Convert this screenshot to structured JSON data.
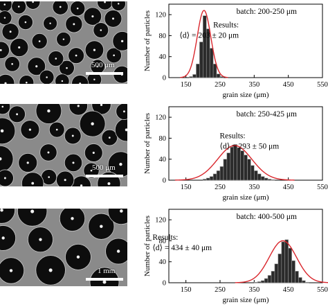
{
  "panels": [
    {
      "scale_bar": "500 μm",
      "batch": "batch: 200-250 μm",
      "results_title": "Results:",
      "results_value": "⟨d⟩ = 203 ± 20 μm"
    },
    {
      "scale_bar": "500 μm",
      "batch": "batch: 250-425 μm",
      "results_title": "Results:",
      "results_value": "⟨d⟩ = 293 ± 50 μm"
    },
    {
      "scale_bar": "1 mm",
      "batch": "batch: 400-500 μm",
      "results_title": "Results:",
      "results_value": "⟨d⟩ = 434 ± 40 μm"
    }
  ],
  "chart_data": [
    {
      "type": "bar",
      "xlabel": "grain size (μm)",
      "ylabel": "Number of particles",
      "xlim": [
        100,
        550
      ],
      "ylim": [
        0,
        140
      ],
      "xticks": [
        150,
        250,
        350,
        450,
        550
      ],
      "yticks": [
        0,
        40,
        80,
        120
      ],
      "bin_width": 10,
      "x": [
        165,
        175,
        185,
        195,
        205,
        215,
        225,
        235,
        245,
        255
      ],
      "values": [
        2,
        6,
        26,
        68,
        118,
        93,
        56,
        26,
        7,
        2
      ],
      "fit": {
        "mean": 203,
        "sd": 20,
        "peak": 128,
        "color": "#d9262c"
      }
    },
    {
      "type": "bar",
      "xlabel": "grain size (μm)",
      "ylabel": "Number of particles",
      "xlim": [
        100,
        550
      ],
      "ylim": [
        0,
        140
      ],
      "xticks": [
        150,
        250,
        350,
        450,
        550
      ],
      "yticks": [
        0,
        40,
        80,
        120
      ],
      "bin_width": 10,
      "x": [
        205,
        215,
        225,
        235,
        245,
        255,
        265,
        275,
        285,
        295,
        305,
        315,
        325,
        335,
        345,
        355,
        365,
        375,
        385,
        395,
        405
      ],
      "values": [
        2,
        4,
        7,
        12,
        18,
        26,
        40,
        52,
        63,
        68,
        62,
        56,
        48,
        40,
        28,
        18,
        12,
        7,
        4,
        2,
        1
      ],
      "fit": {
        "mean": 293,
        "sd": 50,
        "peak": 66,
        "color": "#d9262c"
      }
    },
    {
      "type": "bar",
      "xlabel": "grain size (μm)",
      "ylabel": "Number of particles",
      "xlim": [
        100,
        550
      ],
      "ylim": [
        0,
        140
      ],
      "xticks": [
        150,
        250,
        350,
        450,
        550
      ],
      "yticks": [
        0,
        40,
        80,
        120
      ],
      "bin_width": 10,
      "x": [
        355,
        365,
        375,
        385,
        395,
        405,
        415,
        425,
        435,
        445,
        455,
        465,
        475,
        485,
        495,
        505
      ],
      "values": [
        1,
        2,
        4,
        8,
        14,
        22,
        36,
        55,
        78,
        82,
        66,
        42,
        22,
        10,
        4,
        1
      ],
      "fit": {
        "mean": 434,
        "sd": 40,
        "peak": 80,
        "color": "#d9262c"
      }
    }
  ]
}
